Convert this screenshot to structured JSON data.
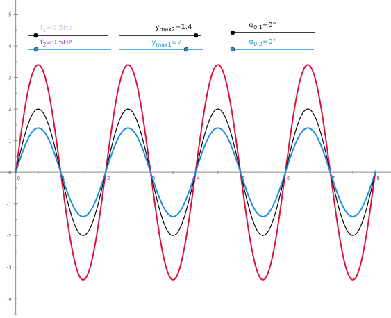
{
  "chart_data": {
    "type": "line",
    "xlim": [
      -0.35,
      8.35
    ],
    "ylim": [
      -4.5,
      5.45
    ],
    "x_ticks": [
      "0",
      "1",
      "2",
      "3",
      "4",
      "5",
      "6",
      "7",
      "8"
    ],
    "y_ticks": [
      "-4",
      "-3",
      "-2",
      "-1",
      "0",
      "1",
      "2",
      "3",
      "4",
      "5"
    ],
    "grid": false,
    "series": [
      {
        "key": "wave1",
        "formula": "2*sin(2*pi*0.5*x)",
        "amplitude": 2,
        "frequency_hz": 0.5,
        "phase_deg": 0,
        "x_range": [
          0,
          8
        ],
        "color": "#000000"
      },
      {
        "key": "wave2",
        "formula": "1.4*sin(2*pi*0.5*x)",
        "amplitude": 1.4,
        "frequency_hz": 0.5,
        "phase_deg": 0,
        "x_range": [
          0,
          8
        ],
        "color": "#1a8fe0"
      },
      {
        "key": "sum",
        "formula": "3.4*sin(2*pi*0.5*x)",
        "amplitude": 3.4,
        "frequency_hz": 0.5,
        "phase_deg": 0,
        "x_range": [
          0,
          8
        ],
        "color": "#e0103c"
      }
    ]
  },
  "sliders": [
    {
      "key": "f1",
      "symbol": "f",
      "sub": "1",
      "eq": "=0.5Hz",
      "value": 0.5,
      "min": 0,
      "max": 5,
      "line_color": "#000000",
      "point_color": "#000000",
      "text_color": "#cfc6ee"
    },
    {
      "key": "f2",
      "symbol": "f",
      "sub": "2",
      "eq": "=0.5Hz",
      "value": 0.5,
      "min": 0,
      "max": 5,
      "line_color": "#1a8fe0",
      "point_color": "#1a8fe0",
      "text_color": "#9a45d6"
    },
    {
      "key": "ymax2",
      "symbol": "y",
      "sub": "max2",
      "eq": "=1.4",
      "value": 1.4,
      "min": 0,
      "max": 1.5,
      "line_color": "#000000",
      "point_color": "#000000",
      "text_color": "#000000"
    },
    {
      "key": "ymax1",
      "symbol": "y",
      "sub": "max1",
      "eq": "=2",
      "value": 2,
      "min": 0,
      "max": 2.5,
      "line_color": "#1a8fe0",
      "point_color": "#1a8fe0",
      "text_color": "#1a8fe0"
    },
    {
      "key": "phi01",
      "symbol": "φ",
      "sub": "0,1",
      "eq": "=0°",
      "value": 0,
      "min": 0,
      "max": 360,
      "line_color": "#000000",
      "point_color": "#000000",
      "text_color": "#000000"
    },
    {
      "key": "phi02",
      "symbol": "φ",
      "sub": "0,2",
      "eq": "=0°",
      "value": 0,
      "min": 0,
      "max": 360,
      "line_color": "#1a8fe0",
      "point_color": "#1a8fe0",
      "text_color": "#1a8fe0"
    }
  ]
}
